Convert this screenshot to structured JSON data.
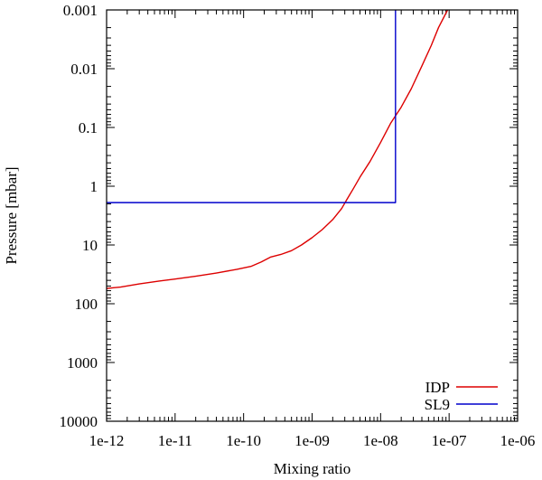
{
  "chart_data": {
    "type": "line",
    "title": "",
    "xlabel": "Mixing ratio",
    "ylabel": "Pressure [mbar]",
    "x_scale": "log",
    "y_scale": "log",
    "y_inverted": true,
    "xlim": [
      1e-12,
      1e-06
    ],
    "ylim": [
      10000,
      0.001
    ],
    "x_ticks": [
      "1e-12",
      "1e-11",
      "1e-10",
      "1e-09",
      "1e-08",
      "1e-07",
      "1e-06"
    ],
    "x_tick_values": [
      1e-12,
      1e-11,
      1e-10,
      1e-09,
      1e-08,
      1e-07,
      1e-06
    ],
    "y_ticks": [
      "0.001",
      "0.01",
      "0.1",
      "1",
      "10",
      "100",
      "1000",
      "10000"
    ],
    "y_tick_values": [
      0.001,
      0.01,
      0.1,
      1,
      10,
      100,
      1000,
      10000
    ],
    "grid": false,
    "legend_position": "bottom-right",
    "series": [
      {
        "name": "IDP",
        "color": "#dd0000",
        "points": [
          [
            1e-12,
            55
          ],
          [
            1.6e-12,
            52
          ],
          [
            3e-12,
            46
          ],
          [
            6e-12,
            41
          ],
          [
            1e-11,
            38
          ],
          [
            2e-11,
            34
          ],
          [
            4e-11,
            30
          ],
          [
            8e-11,
            26
          ],
          [
            1.3e-10,
            23
          ],
          [
            1.8e-10,
            19.5
          ],
          [
            2.5e-10,
            16
          ],
          [
            3.5e-10,
            14.5
          ],
          [
            5e-10,
            12.5
          ],
          [
            7e-10,
            10
          ],
          [
            1e-09,
            7.5
          ],
          [
            1.4e-09,
            5.5
          ],
          [
            2e-09,
            3.7
          ],
          [
            2.7e-09,
            2.4
          ],
          [
            3.2e-09,
            1.7
          ],
          [
            4e-09,
            1.1
          ],
          [
            5e-09,
            0.7
          ],
          [
            7e-09,
            0.38
          ],
          [
            1e-08,
            0.18
          ],
          [
            1.4e-08,
            0.085
          ],
          [
            2e-08,
            0.045
          ],
          [
            2.8e-08,
            0.022
          ],
          [
            4e-08,
            0.009
          ],
          [
            5.5e-08,
            0.004
          ],
          [
            7e-08,
            0.002
          ],
          [
            9.5e-08,
            0.001
          ]
        ]
      },
      {
        "name": "SL9",
        "color": "#0000cc",
        "points": [
          [
            1e-12,
            1.9
          ],
          [
            1.65e-08,
            1.9
          ],
          [
            1.65e-08,
            0.001
          ]
        ]
      }
    ]
  }
}
